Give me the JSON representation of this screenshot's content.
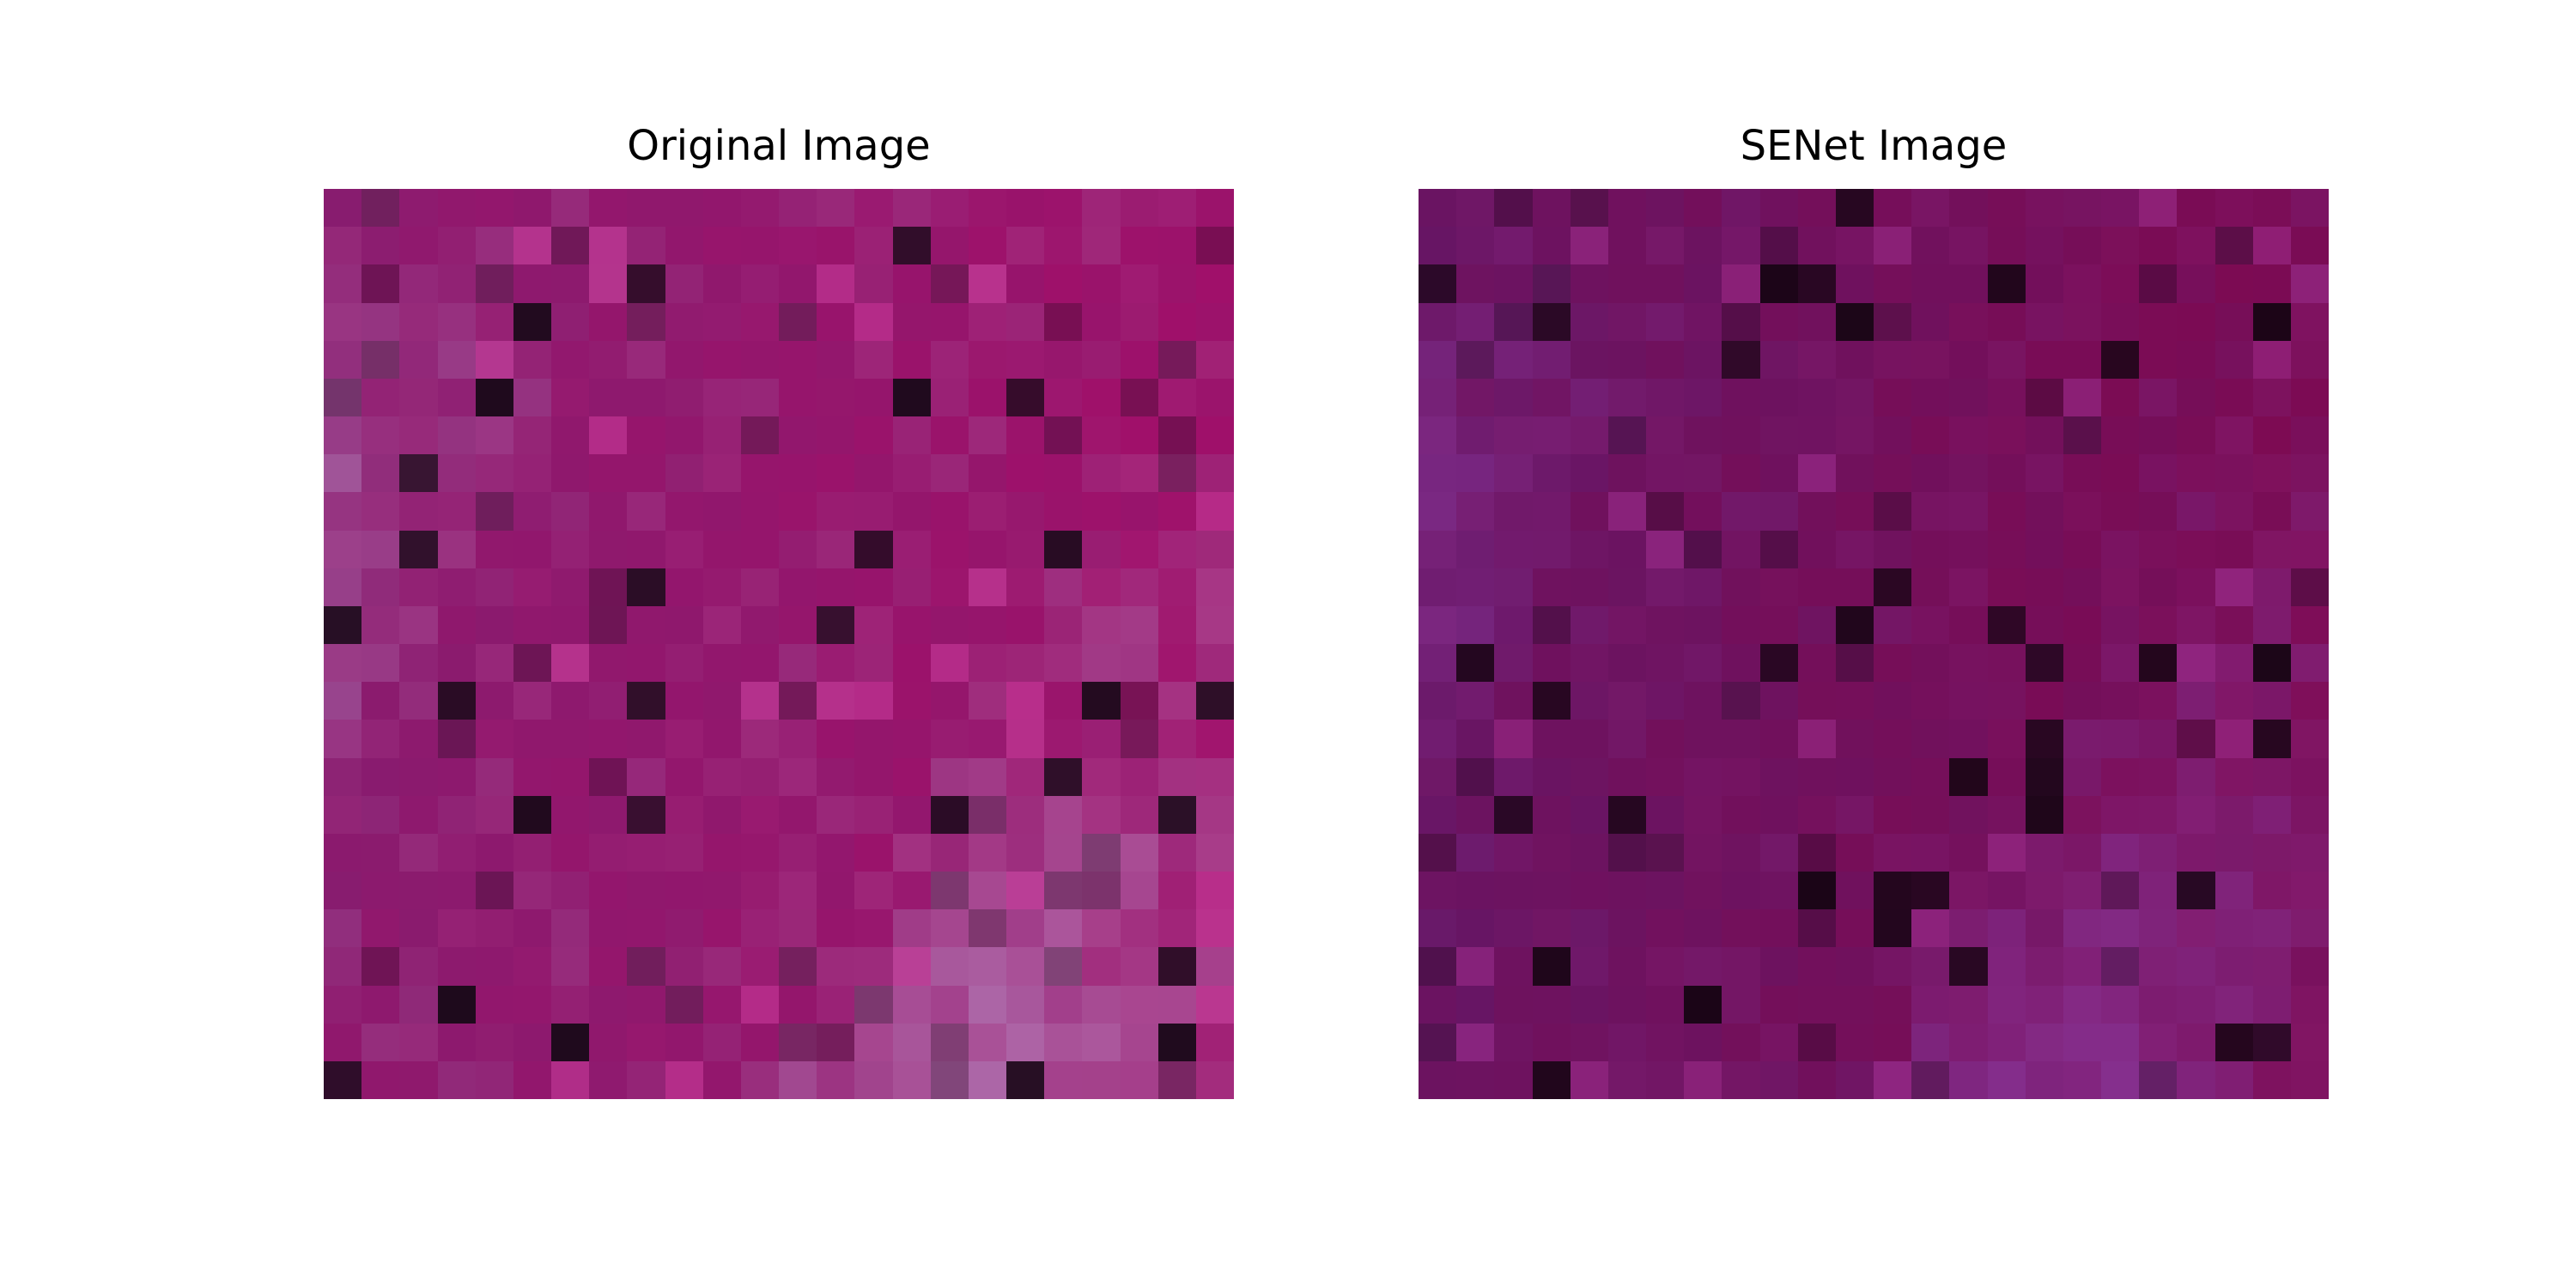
{
  "figure": {
    "grid_size": 24,
    "panels": [
      {
        "id": "original",
        "title": "Original Image",
        "palette": {
          "dark": "#1e0a1c",
          "mid": "#8c1a6e",
          "magenta": "#a0106a",
          "light": "#b58ac0",
          "accent": "#c83a9a"
        }
      },
      {
        "id": "senet",
        "title": "SENet Image",
        "palette": {
          "dark": "#1a0516",
          "mid": "#6a1462",
          "magenta": "#7e0a52",
          "light": "#8a3aa0",
          "accent": "#9a2a88"
        }
      }
    ]
  }
}
